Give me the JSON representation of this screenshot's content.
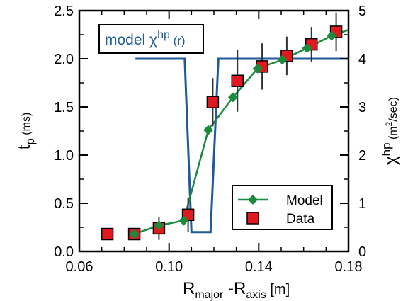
{
  "chart_data": {
    "type": "scatter",
    "x_axis": {
      "label_main": "R",
      "label_sub1": "major",
      "label_mid": " -R",
      "label_sub2": "axis",
      "label_unit": " [m]",
      "range": [
        0.06,
        0.18
      ],
      "ticks": [
        0.06,
        0.1,
        0.14,
        0.18
      ],
      "tick_labels": [
        "0.06",
        "0.10",
        "0.14",
        "0.18"
      ],
      "minor_ticks": [
        0.07,
        0.08,
        0.09,
        0.11,
        0.12,
        0.13,
        0.15,
        0.16,
        0.17
      ]
    },
    "y_left": {
      "label_main": "t",
      "label_sub": "p",
      "label_unit": " (ms)",
      "range": [
        0,
        2.5
      ],
      "ticks": [
        0,
        0.5,
        1.0,
        1.5,
        2.0,
        2.5
      ],
      "tick_labels": [
        "0.0",
        "0.5",
        "1.0",
        "1.5",
        "2.0",
        "2.5"
      ],
      "minor_ticks": [
        0.25,
        0.75,
        1.25,
        1.75,
        2.25
      ]
    },
    "y_right": {
      "label_main": "χ",
      "label_sup": "hp",
      "label_unit_pre": " (m",
      "label_unit_sup": "2",
      "label_unit_post": "/sec)",
      "range": [
        0,
        5
      ],
      "ticks": [
        0,
        1,
        2,
        3,
        4,
        5
      ],
      "tick_labels": [
        "0",
        "1",
        "2",
        "3",
        "4",
        "5"
      ],
      "minor_ticks": [
        0.5,
        1.5,
        2.5,
        3.5,
        4.5
      ]
    },
    "series": [
      {
        "name": "Model",
        "kind": "line-diamond",
        "color": "#1a8a3c",
        "x": [
          0.0845,
          0.0955,
          0.1065,
          0.1175,
          0.1285,
          0.1395,
          0.1505,
          0.1615,
          0.1725,
          0.18
        ],
        "y": [
          0.18,
          0.27,
          0.32,
          1.26,
          1.6,
          1.9,
          1.99,
          2.11,
          2.24,
          2.3
        ],
        "marker_count": 9
      },
      {
        "name": "Data",
        "kind": "scatter-square",
        "color": "#e0191f",
        "x": [
          0.0725,
          0.0845,
          0.0955,
          0.1085,
          0.1195,
          0.1305,
          0.1415,
          0.1525,
          0.1635,
          0.1745
        ],
        "y": [
          0.18,
          0.18,
          0.24,
          0.38,
          1.55,
          1.77,
          1.92,
          2.03,
          2.15,
          2.28
        ],
        "err": [
          0,
          0,
          0.12,
          0.18,
          0.25,
          0.32,
          0.24,
          0.2,
          0.18,
          0.2
        ]
      },
      {
        "name": "model χhp (r)",
        "kind": "step-line",
        "color": "#1f5a9a",
        "axis": "right",
        "x": [
          0.085,
          0.107,
          0.11,
          0.1185,
          0.122,
          0.18
        ],
        "y": [
          4.0,
          4.0,
          0.4,
          0.4,
          4.0,
          4.0
        ]
      }
    ],
    "annotation": {
      "main": "model χ",
      "sup": "hp",
      "tail": " (r)"
    },
    "legend": {
      "position": "bottom-right",
      "items": [
        "Model",
        "Data"
      ]
    }
  }
}
